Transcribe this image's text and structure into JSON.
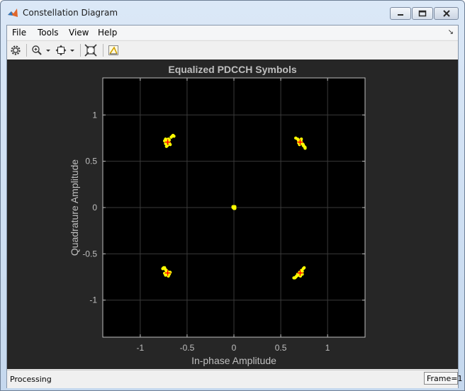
{
  "window": {
    "title": "Constellation Diagram"
  },
  "menu": {
    "items": [
      "File",
      "Tools",
      "View",
      "Help"
    ]
  },
  "toolbar": {
    "icons": [
      "gear-icon",
      "zoom-in-icon",
      "dropdown-icon",
      "fit-axes-icon",
      "dropdown-icon",
      "autoscale-icon",
      "measurements-icon"
    ]
  },
  "status": {
    "left": "Processing",
    "right": "Frame=1"
  },
  "colors": {
    "plot_bg": "#262626",
    "axes_bg": "#000000",
    "points": "#ffff00",
    "reference": "#ff0000",
    "text": "#bfbfbf"
  },
  "chart_data": {
    "type": "scatter",
    "title": "Equalized PDCCH Symbols",
    "xlabel": "In-phase Amplitude",
    "ylabel": "Quadrature Amplitude",
    "xlim": [
      -1.4,
      1.4
    ],
    "ylim": [
      -1.4,
      1.4
    ],
    "xticks": [
      -1,
      -0.5,
      0,
      0.5,
      1
    ],
    "yticks": [
      -1,
      -0.5,
      0,
      0.5,
      1
    ],
    "xticklabels": [
      "-1",
      "-0.5",
      "0",
      "0.5",
      "1"
    ],
    "yticklabels": [
      "-1",
      "-0.5",
      "0",
      "0.5",
      "1"
    ],
    "grid": true,
    "reference_points": [
      [
        0.707,
        0.707
      ],
      [
        -0.707,
        0.707
      ],
      [
        -0.707,
        -0.707
      ],
      [
        0.707,
        -0.707
      ]
    ],
    "points": [
      [
        -0.72,
        0.71
      ],
      [
        -0.7,
        0.72
      ],
      [
        -0.73,
        0.69
      ],
      [
        -0.69,
        0.7
      ],
      [
        -0.71,
        0.73
      ],
      [
        -0.74,
        0.72
      ],
      [
        -0.68,
        0.68
      ],
      [
        -0.72,
        0.66
      ],
      [
        -0.66,
        0.77
      ],
      [
        -0.65,
        0.78
      ],
      [
        -0.67,
        0.76
      ],
      [
        -0.64,
        0.77
      ],
      [
        -0.7,
        0.74
      ],
      [
        -0.73,
        0.74
      ],
      [
        -0.71,
        0.67
      ],
      [
        -0.69,
        0.73
      ],
      [
        0.7,
        0.72
      ],
      [
        0.72,
        0.71
      ],
      [
        0.69,
        0.7
      ],
      [
        0.71,
        0.73
      ],
      [
        0.73,
        0.69
      ],
      [
        0.68,
        0.74
      ],
      [
        0.66,
        0.75
      ],
      [
        0.7,
        0.68
      ],
      [
        0.75,
        0.66
      ],
      [
        0.76,
        0.65
      ],
      [
        0.74,
        0.67
      ],
      [
        0.76,
        0.64
      ],
      [
        0.71,
        0.7
      ],
      [
        0.72,
        0.74
      ],
      [
        0.69,
        0.72
      ],
      [
        0.74,
        0.68
      ],
      [
        -0.75,
        -0.65
      ],
      [
        -0.76,
        -0.66
      ],
      [
        -0.74,
        -0.65
      ],
      [
        -0.72,
        -0.7
      ],
      [
        -0.7,
        -0.72
      ],
      [
        -0.71,
        -0.71
      ],
      [
        -0.73,
        -0.73
      ],
      [
        -0.69,
        -0.72
      ],
      [
        -0.68,
        -0.7
      ],
      [
        -0.72,
        -0.68
      ],
      [
        -0.7,
        -0.74
      ],
      [
        -0.74,
        -0.71
      ],
      [
        -0.71,
        -0.69
      ],
      [
        -0.73,
        -0.67
      ],
      [
        -0.69,
        -0.7
      ],
      [
        -0.72,
        -0.72
      ],
      [
        0.72,
        -0.7
      ],
      [
        0.7,
        -0.72
      ],
      [
        0.71,
        -0.71
      ],
      [
        0.73,
        -0.69
      ],
      [
        0.69,
        -0.73
      ],
      [
        0.74,
        -0.66
      ],
      [
        0.75,
        -0.65
      ],
      [
        0.72,
        -0.68
      ],
      [
        0.65,
        -0.76
      ],
      [
        0.66,
        -0.75
      ],
      [
        0.64,
        -0.76
      ],
      [
        0.67,
        -0.74
      ],
      [
        0.7,
        -0.7
      ],
      [
        0.68,
        -0.72
      ],
      [
        0.71,
        -0.74
      ],
      [
        0.73,
        -0.72
      ],
      [
        0.0,
        0.0
      ],
      [
        0.01,
        0.01
      ],
      [
        -0.01,
        0.0
      ],
      [
        0.0,
        -0.01
      ],
      [
        0.01,
        -0.01
      ],
      [
        -0.01,
        0.01
      ],
      [
        0.0,
        0.01
      ],
      [
        0.01,
        0.0
      ]
    ]
  }
}
